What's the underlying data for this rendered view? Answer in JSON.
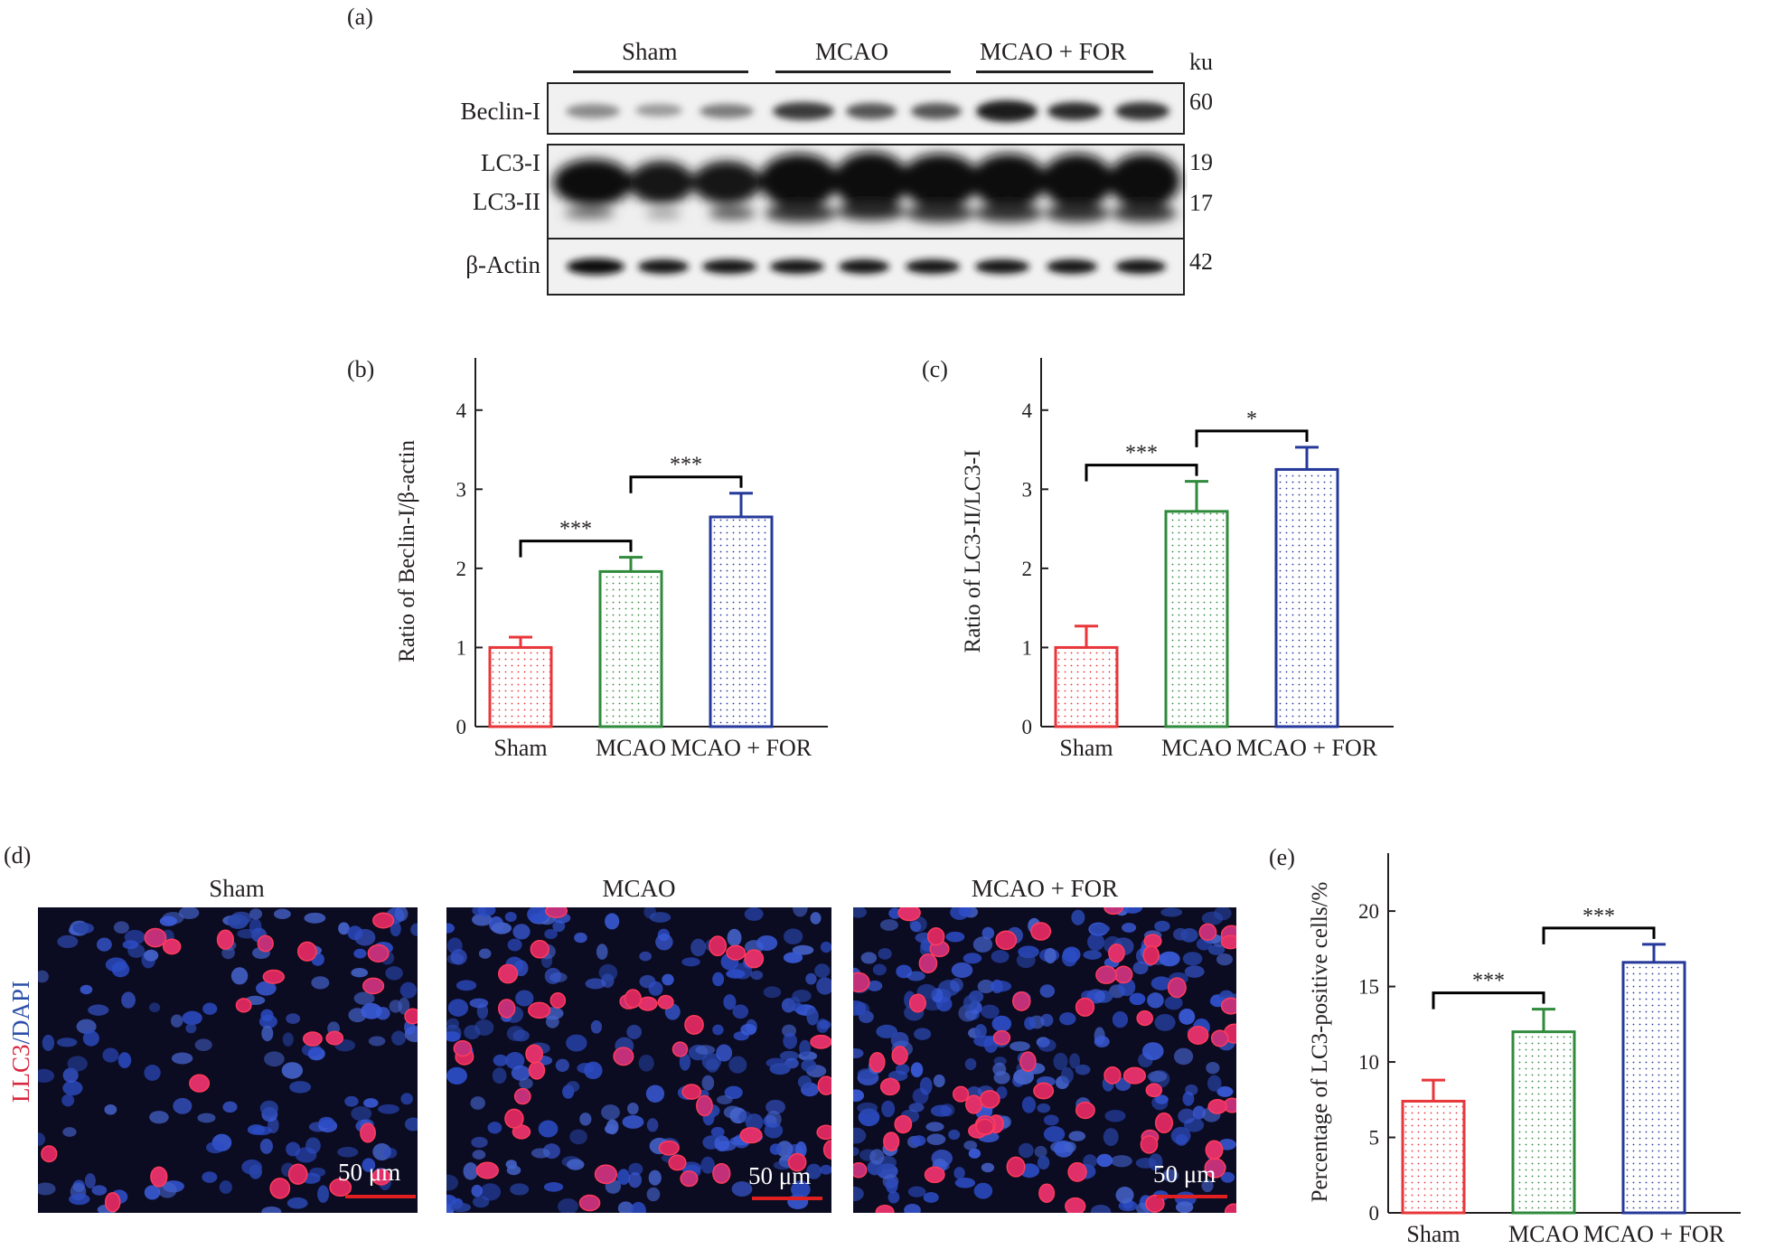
{
  "panel_labels": {
    "a": "(a)",
    "b": "(b)",
    "c": "(c)",
    "d": "(d)",
    "e": "(e)"
  },
  "groups": [
    "Sham",
    "MCAO",
    "MCAO + FOR"
  ],
  "western": {
    "unit": "ku",
    "rows": [
      {
        "label": "Beclin-I",
        "kda": "60"
      },
      {
        "label": "LC3-I",
        "kda": "19"
      },
      {
        "label": "LC3-II",
        "kda": "17"
      },
      {
        "label": "β-Actin",
        "kda": "42"
      }
    ]
  },
  "micrographs": {
    "stain_red": "LLC3",
    "stain_sep": "/",
    "stain_blue": "DAPI",
    "titles": [
      "Sham",
      "MCAO",
      "MCAO + FOR"
    ],
    "scale_bar": "50 μm"
  },
  "colors": {
    "sham": "#e8363a",
    "mcao": "#2f8a3c",
    "for": "#26399a",
    "stain_red": "#d7263d",
    "stain_blue": "#2b4ea8"
  },
  "chart_data": [
    {
      "type": "bar",
      "panel": "(b)",
      "categories": [
        "Sham",
        "MCAO",
        "MCAO + FOR"
      ],
      "values": [
        1.0,
        1.96,
        2.65
      ],
      "errors": [
        0.13,
        0.18,
        0.3
      ],
      "ylabel": "Ratio of Beclin-I/β-actin",
      "ylim": [
        0,
        4.5
      ],
      "yticks": [
        0,
        1,
        2,
        3,
        4
      ],
      "significance": [
        {
          "from": 0,
          "to": 1,
          "label": "***"
        },
        {
          "from": 1,
          "to": 2,
          "label": "***"
        }
      ]
    },
    {
      "type": "bar",
      "panel": "(c)",
      "categories": [
        "Sham",
        "MCAO",
        "MCAO + FOR"
      ],
      "values": [
        1.0,
        2.72,
        3.25
      ],
      "errors": [
        0.27,
        0.38,
        0.28
      ],
      "ylabel": "Ratio of LC3-II/LC3-I",
      "ylim": [
        0,
        4.5
      ],
      "yticks": [
        0,
        1,
        2,
        3,
        4
      ],
      "significance": [
        {
          "from": 0,
          "to": 1,
          "label": "***"
        },
        {
          "from": 1,
          "to": 2,
          "label": "*"
        }
      ]
    },
    {
      "type": "bar",
      "panel": "(e)",
      "categories": [
        "Sham",
        "MCAO",
        "MCAO + FOR"
      ],
      "values": [
        7.4,
        12.0,
        16.6
      ],
      "errors": [
        1.4,
        1.5,
        1.2
      ],
      "ylabel": "Percentage of LC3-positive cells/%",
      "ylim": [
        0,
        23
      ],
      "yticks": [
        0,
        5,
        10,
        15,
        20
      ],
      "significance": [
        {
          "from": 0,
          "to": 1,
          "label": "***"
        },
        {
          "from": 1,
          "to": 2,
          "label": "***"
        }
      ]
    }
  ]
}
